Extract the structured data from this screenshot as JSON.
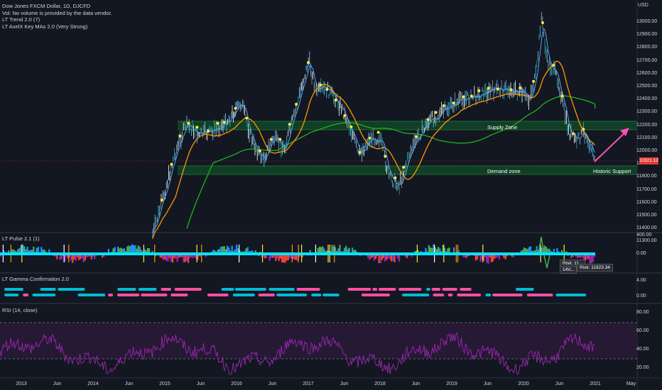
{
  "header": {
    "title": "Dow Jones FXCM Dollar, 1D, DJCFD",
    "volume_note": "Vol: No volume is provided by the data vendor.",
    "indicator_1": "LT Trend 2.0 (7)",
    "indicator_2": "LT AxelX Key MAs 2.0 (Very Strong)"
  },
  "currency": "USD",
  "last_price": "11921.12",
  "y_axis": [
    "13000.00",
    "12900.00",
    "12800.00",
    "12700.00",
    "12600.00",
    "12500.00",
    "12400.00",
    "12300.00",
    "12200.00",
    "12100.00",
    "12000.00",
    "11900.00",
    "11800.00",
    "11700.00",
    "11600.00",
    "11500.00",
    "11400.00",
    "11300.00"
  ],
  "x_axis": [
    "2013",
    "Jun",
    "2014",
    "Jun",
    "2015",
    "Jun",
    "2016",
    "Jun",
    "2017",
    "Jun",
    "2018",
    "Jun",
    "2019",
    "Jun",
    "2020",
    "Jun",
    "2021",
    "May"
  ],
  "zones": {
    "supply": "Supply Zone",
    "demand": "Demand zone",
    "support": "Historic Support"
  },
  "panes": {
    "pulse": {
      "title": "LT Pulse 2.1 (1)",
      "ticks": [
        "400.00",
        "0.00"
      ],
      "risk_1": "Risk: 11...",
      "risk_2": "Risk: 11923.34",
      "risk_3": "14V..."
    },
    "gamma": {
      "title": "LT Gamma Confirmation 2.0",
      "ticks": [
        "4.00",
        "0.00"
      ]
    },
    "rsi": {
      "title": "RSI (14, close)",
      "ticks": [
        "80.00",
        "60.00",
        "40.00",
        "20.00"
      ]
    }
  },
  "colors": {
    "background": "#131722",
    "price_tag": "#e53935",
    "ma_fast": "#ff9800",
    "ma_slow": "#1fb31f",
    "rsi_line": "#9c27b0",
    "arrow": "#ff4fb0"
  }
}
